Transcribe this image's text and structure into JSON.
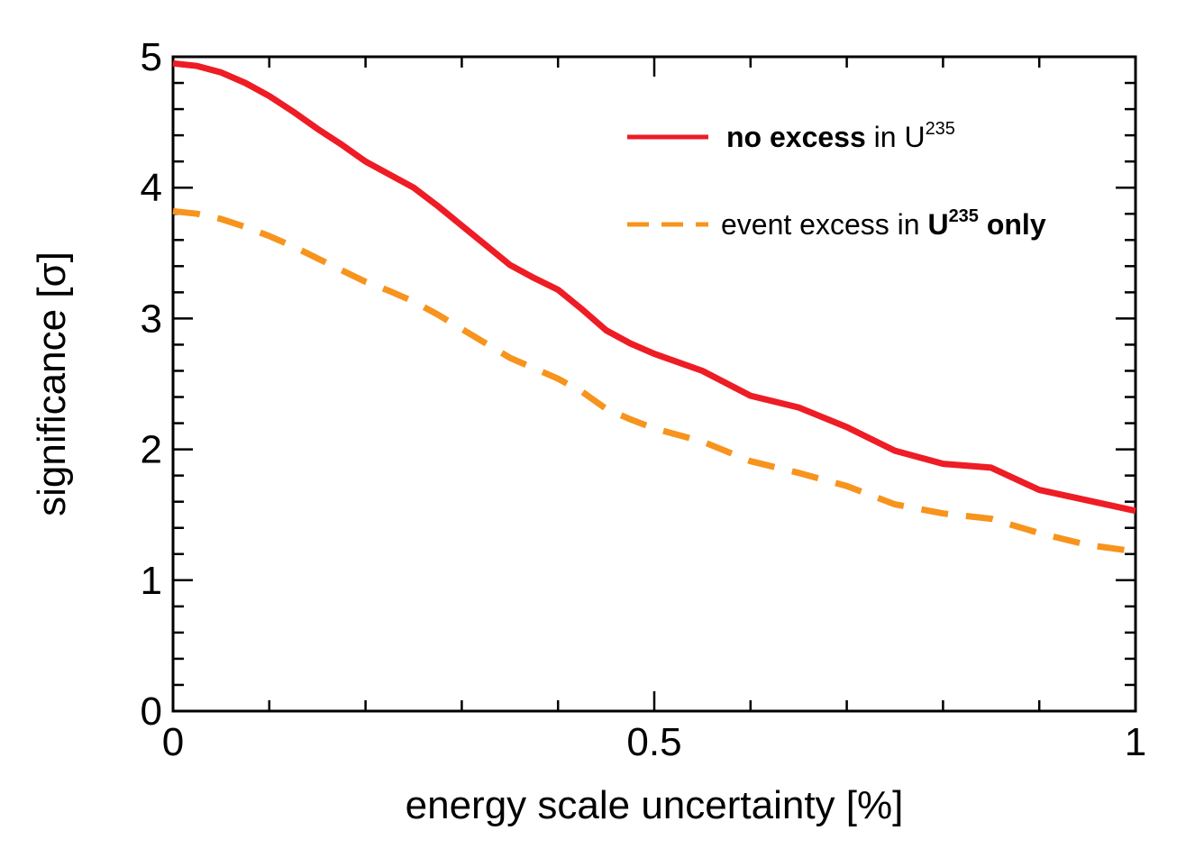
{
  "chart_data": {
    "type": "line",
    "xlabel": "energy scale uncertainty [%]",
    "ylabel": "significance [σ]",
    "xlim": [
      0,
      1
    ],
    "ylim": [
      0,
      5
    ],
    "xticks": [
      {
        "value": 0,
        "label": "0"
      },
      {
        "value": 0.5,
        "label": "0.5"
      },
      {
        "value": 1,
        "label": "1"
      }
    ],
    "yticks": [
      {
        "value": 0,
        "label": "0"
      },
      {
        "value": 1,
        "label": "1"
      },
      {
        "value": 2,
        "label": "2"
      },
      {
        "value": 3,
        "label": "3"
      },
      {
        "value": 4,
        "label": "4"
      },
      {
        "value": 5,
        "label": "5"
      }
    ],
    "grid": false,
    "legend_position": "top-right",
    "series": [
      {
        "name": "no excess in U235",
        "legend": {
          "bold": "no excess",
          "text": " in U",
          "sup": "235"
        },
        "color": "#ee1c25",
        "style": "solid",
        "x": [
          0,
          0.025,
          0.05,
          0.075,
          0.1,
          0.125,
          0.15,
          0.175,
          0.2,
          0.225,
          0.25,
          0.275,
          0.3,
          0.325,
          0.35,
          0.375,
          0.4,
          0.425,
          0.45,
          0.475,
          0.5,
          0.55,
          0.6,
          0.65,
          0.7,
          0.75,
          0.8,
          0.85,
          0.9,
          0.95,
          1.0
        ],
        "y": [
          4.95,
          4.93,
          4.88,
          4.8,
          4.7,
          4.58,
          4.45,
          4.33,
          4.2,
          4.1,
          4.0,
          3.86,
          3.71,
          3.56,
          3.41,
          3.31,
          3.22,
          3.07,
          2.91,
          2.81,
          2.73,
          2.6,
          2.41,
          2.32,
          2.17,
          1.99,
          1.89,
          1.86,
          1.69,
          1.61,
          1.53
        ]
      },
      {
        "name": "event excess in U235 only",
        "legend": {
          "text": "event excess in ",
          "bold": "U",
          "sup": "235",
          "bold2": " only"
        },
        "color": "#f7941d",
        "style": "dashed",
        "x": [
          0,
          0.025,
          0.05,
          0.075,
          0.1,
          0.125,
          0.15,
          0.175,
          0.2,
          0.225,
          0.25,
          0.275,
          0.3,
          0.325,
          0.35,
          0.375,
          0.4,
          0.425,
          0.45,
          0.475,
          0.5,
          0.55,
          0.6,
          0.65,
          0.7,
          0.75,
          0.8,
          0.85,
          0.9,
          0.95,
          1.0
        ],
        "y": [
          3.82,
          3.8,
          3.76,
          3.7,
          3.63,
          3.55,
          3.46,
          3.37,
          3.28,
          3.21,
          3.13,
          3.03,
          2.92,
          2.81,
          2.7,
          2.62,
          2.54,
          2.44,
          2.31,
          2.23,
          2.16,
          2.06,
          1.91,
          1.82,
          1.72,
          1.58,
          1.51,
          1.47,
          1.36,
          1.27,
          1.22
        ]
      }
    ]
  }
}
